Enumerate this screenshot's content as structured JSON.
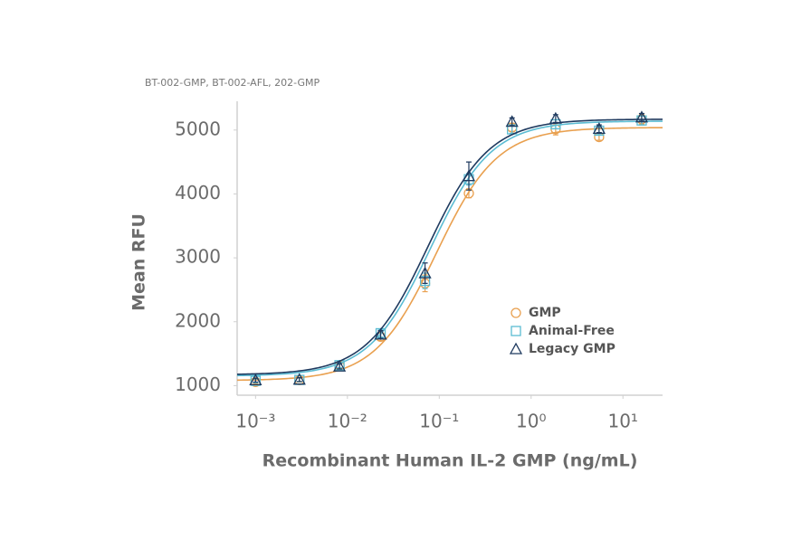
{
  "chart_data": {
    "type": "scatter",
    "subtitle": "BT-002-GMP, BT-002-AFL, 202-GMP",
    "x_label": "Recombinant Human IL-2 GMP (ng/mL)",
    "y_label": "Mean RFU",
    "x_scale": "log",
    "xlim": [
      0.00063,
      27
    ],
    "ylim": [
      850,
      5450
    ],
    "xticks": [
      {
        "value": 0.001,
        "label": "10⁻³"
      },
      {
        "value": 0.01,
        "label": "10⁻²"
      },
      {
        "value": 0.1,
        "label": "10⁻¹"
      },
      {
        "value": 1,
        "label": "10⁰"
      },
      {
        "value": 10,
        "label": "10¹"
      }
    ],
    "yticks": [
      1000,
      2000,
      3000,
      4000,
      5000
    ],
    "grid": false,
    "legend_position": "right",
    "x": [
      0.001,
      0.003,
      0.0082,
      0.023,
      0.07,
      0.21,
      0.62,
      1.85,
      5.5,
      16
    ],
    "series": [
      {
        "name": "GMP",
        "color": "#e9a04f",
        "marker": "circle",
        "values": [
          1057,
          1085,
          1310,
          1765,
          2600,
          4010,
          5040,
          5015,
          4890,
          5170
        ],
        "errors": [
          30,
          30,
          40,
          60,
          130,
          70,
          60,
          90,
          50,
          80
        ],
        "fit": {
          "bottom": 1080,
          "top": 5040,
          "ec50": 0.092,
          "hill": 1.3
        }
      },
      {
        "name": "Animal-Free",
        "color": "#5bbcd3",
        "marker": "square",
        "values": [
          1075,
          1090,
          1320,
          1820,
          2640,
          4230,
          5010,
          5090,
          4990,
          5150
        ],
        "errors": [
          30,
          30,
          40,
          60,
          120,
          90,
          60,
          70,
          50,
          70
        ],
        "fit": {
          "bottom": 1150,
          "top": 5140,
          "ec50": 0.08,
          "hill": 1.3
        }
      },
      {
        "name": "Legacy GMP",
        "color": "#1f3a5f",
        "marker": "triangle",
        "values": [
          1085,
          1095,
          1300,
          1800,
          2760,
          4280,
          5130,
          5180,
          5020,
          5200
        ],
        "errors": [
          30,
          30,
          40,
          60,
          160,
          220,
          60,
          60,
          60,
          60
        ],
        "fit": {
          "bottom": 1170,
          "top": 5170,
          "ec50": 0.075,
          "hill": 1.3
        }
      }
    ]
  }
}
